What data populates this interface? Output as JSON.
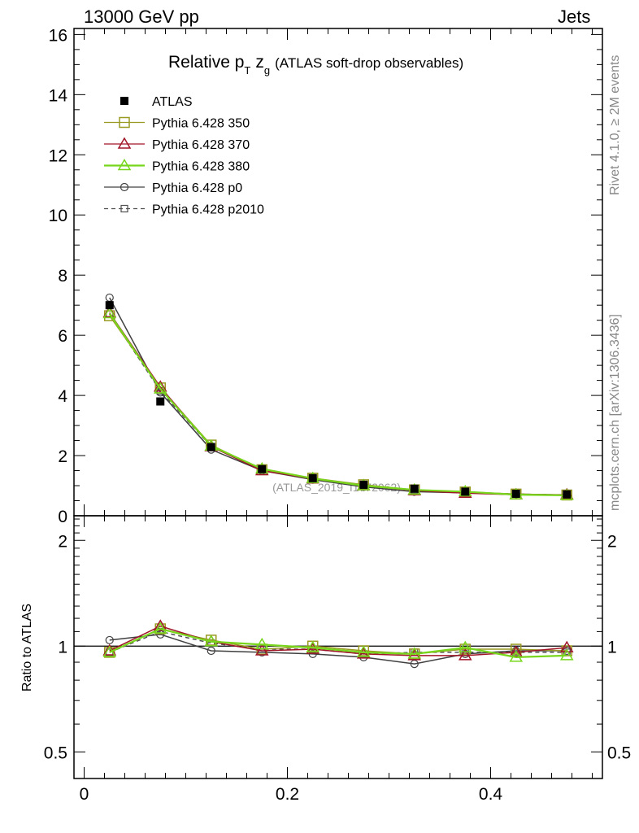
{
  "header": {
    "left": "13000 GeV pp",
    "right": "Jets"
  },
  "side_labels": {
    "rivet": "Rivet 4.1.0, ≥ 2M events",
    "mcplots": "mcplots.cern.ch [arXiv:1306.3436]"
  },
  "chart_data": {
    "type": "scatter",
    "title": {
      "main": "Relative p",
      "sub1": "T",
      "var": "z",
      "sub2": "g",
      "rest": "(ATLAS soft-drop observables)"
    },
    "watermark": "(ATLAS_2019_I1772062)",
    "x": [
      0.025,
      0.075,
      0.125,
      0.175,
      0.225,
      0.275,
      0.325,
      0.375,
      0.425,
      0.475
    ],
    "xlim": [
      -0.01,
      0.51
    ],
    "xticks": [
      0,
      0.2,
      0.4
    ],
    "xtick_labels": [
      "0",
      "0.2",
      "0.4"
    ],
    "main": {
      "ylim": [
        0,
        16.2
      ],
      "yticks": [
        0,
        2,
        4,
        6,
        8,
        10,
        12,
        14,
        16
      ],
      "ytick_labels": [
        "0",
        "2",
        "4",
        "6",
        "8",
        "10",
        "12",
        "14",
        "16"
      ]
    },
    "ratio": {
      "ylabel": "Ratio to ATLAS",
      "ylim": [
        0.42,
        2.35
      ],
      "yticks": [
        0.5,
        1,
        2
      ],
      "ytick_labels": [
        "0.5",
        "1",
        "2"
      ]
    },
    "series": [
      {
        "name": "ATLAS",
        "color": "#000000",
        "marker": "filled-square",
        "line": "none",
        "values": [
          7.0,
          3.8,
          2.28,
          1.55,
          1.25,
          1.03,
          0.9,
          0.8,
          0.73,
          0.71
        ]
      },
      {
        "name": "Pythia 6.428 350",
        "color": "#9a9a22",
        "marker": "open-square",
        "line": "solid",
        "values": [
          6.65,
          4.25,
          2.35,
          1.53,
          1.25,
          1.03,
          0.86,
          0.79,
          0.72,
          0.69
        ],
        "ratio": [
          0.96,
          1.12,
          1.04,
          0.98,
          1.0,
          0.97,
          0.95,
          0.98,
          0.98,
          0.97
        ]
      },
      {
        "name": "Pythia 6.428 370",
        "color": "#a01428",
        "marker": "open-triangle",
        "line": "solid",
        "values": [
          6.75,
          4.28,
          2.3,
          1.5,
          1.23,
          1.0,
          0.84,
          0.75,
          0.7,
          0.7
        ],
        "ratio": [
          0.97,
          1.14,
          1.03,
          0.97,
          0.98,
          0.95,
          0.94,
          0.94,
          0.96,
          0.99
        ]
      },
      {
        "name": "Pythia 6.428 380",
        "color": "#77d61c",
        "marker": "open-triangle",
        "line": "solid",
        "values": [
          6.72,
          4.22,
          2.32,
          1.56,
          1.24,
          1.0,
          0.86,
          0.8,
          0.7,
          0.68
        ],
        "ratio": [
          0.96,
          1.12,
          1.03,
          1.01,
          0.99,
          0.96,
          0.95,
          0.99,
          0.93,
          0.94
        ]
      },
      {
        "name": "Pythia 6.428 p0",
        "color": "#404040",
        "marker": "open-circle",
        "line": "solid",
        "values": [
          7.25,
          4.1,
          2.2,
          1.5,
          1.2,
          0.96,
          0.8,
          0.76,
          0.72,
          0.69
        ],
        "ratio": [
          1.04,
          1.08,
          0.97,
          0.96,
          0.95,
          0.93,
          0.89,
          0.95,
          0.97,
          0.97
        ]
      },
      {
        "name": "Pythia 6.428 p2010",
        "color": "#505050",
        "marker": "open-square-small",
        "line": "dashed",
        "values": [
          6.7,
          4.15,
          2.3,
          1.53,
          1.22,
          1.0,
          0.86,
          0.78,
          0.72,
          0.69
        ],
        "ratio": [
          0.96,
          1.1,
          1.02,
          0.98,
          0.98,
          0.95,
          0.96,
          0.96,
          0.96,
          0.96
        ]
      }
    ]
  }
}
